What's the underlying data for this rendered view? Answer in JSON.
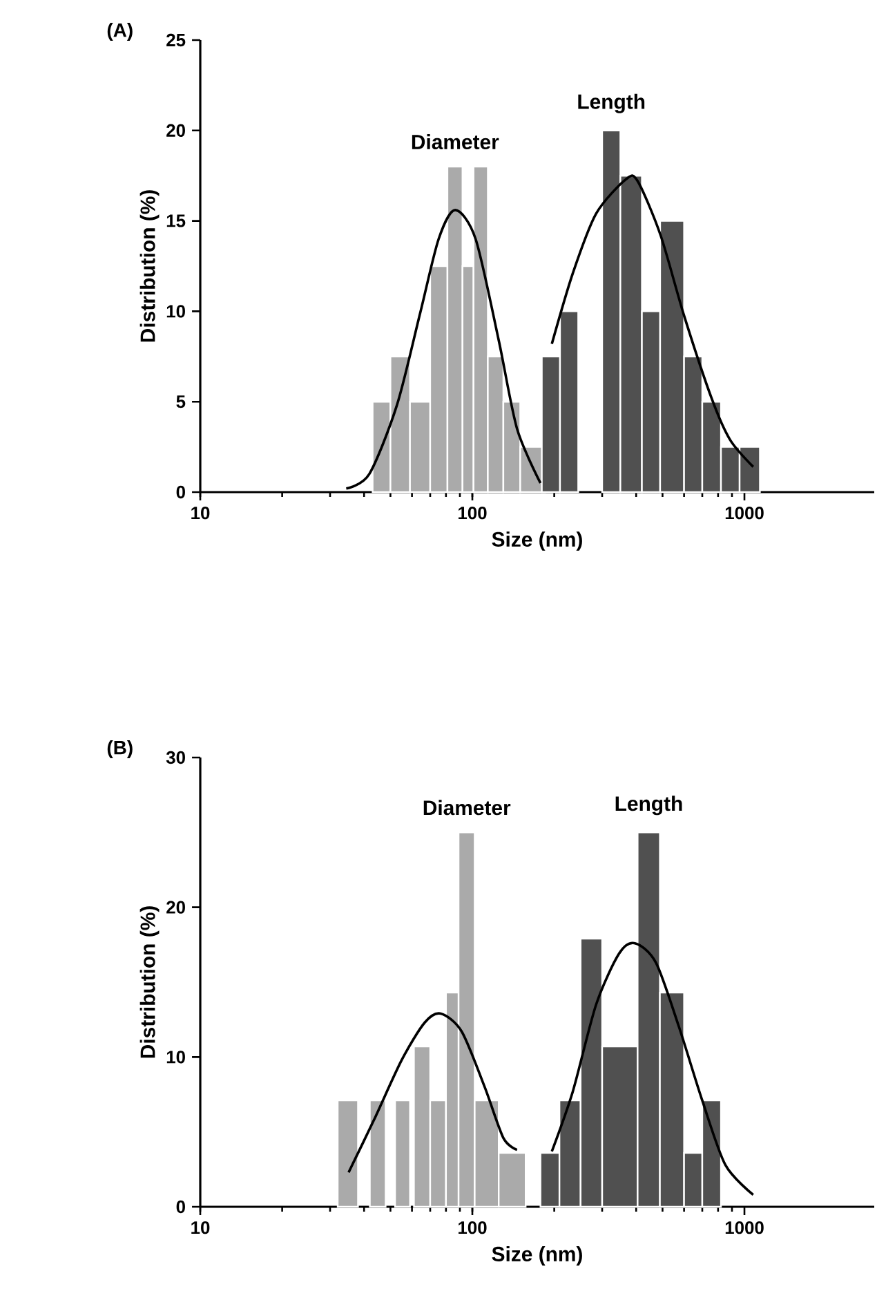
{
  "chart_data": [
    {
      "type": "histogram",
      "title": "(A)",
      "xlabel": "Size (nm)",
      "ylabel": "Distribution (%)",
      "log": "x",
      "xlim": [
        10,
        3000
      ],
      "xticks": [
        10,
        100,
        1000
      ],
      "ylim": [
        0,
        25
      ],
      "yticks": [
        0,
        5,
        10,
        15,
        20,
        25
      ],
      "series": [
        {
          "name": "Diameter",
          "color": "#aaaaaa",
          "bins": [
            43,
            50,
            59,
            70,
            81,
            92,
            101,
            114,
            130,
            150,
            185
          ],
          "values": [
            5,
            7.5,
            5,
            12.5,
            18,
            12.5,
            18,
            7.5,
            5,
            2.5
          ]
        },
        {
          "name": "Length",
          "color": "#505050",
          "bins": [
            180,
            210,
            245,
            300,
            350,
            420,
            490,
            600,
            700,
            820,
            960,
            1140
          ],
          "values": [
            7.5,
            10,
            0,
            20,
            17.5,
            10,
            15,
            7.5,
            5,
            2.5,
            2.5
          ]
        },
        {
          "type": "line",
          "color": "#000000",
          "x": [
            34.4,
            41.8,
            52.8,
            64.3,
            75.2,
            86.5,
            102.8,
            125,
            146,
            178
          ],
          "values": [
            0.2,
            1,
            4.8,
            9.9,
            14,
            15.6,
            14,
            8.4,
            3.5,
            0.5
          ]
        },
        {
          "type": "line",
          "color": "#000000",
          "x": [
            196,
            234,
            285,
            367,
            405,
            492,
            599,
            757,
            885,
            1077
          ],
          "values": [
            8.2,
            12.1,
            15.4,
            17.3,
            17.2,
            14.2,
            9.8,
            5.2,
            2.9,
            1.4
          ]
        }
      ]
    },
    {
      "type": "histogram",
      "title": "(B)",
      "xlabel": "Size (nm)",
      "ylabel": "Distribution (%)",
      "log": "x",
      "xlim": [
        10,
        3000
      ],
      "xticks": [
        10,
        100,
        1000
      ],
      "ylim": [
        0,
        30
      ],
      "yticks": [
        0,
        10,
        20,
        30
      ],
      "series": [
        {
          "name": "Diameter",
          "color": "#aaaaaa",
          "bins": [
            32,
            38,
            42,
            48,
            52,
            59,
            61,
            70,
            80,
            89,
            102,
            125,
            157
          ],
          "values": [
            7.1,
            0,
            7.1,
            0,
            7.1,
            0,
            10.7,
            7.1,
            14.3,
            25,
            7.1,
            3.6
          ]
        },
        {
          "name": "Length",
          "color": "#505050",
          "bins": [
            178,
            209,
            250,
            300,
            405,
            489,
            600,
            700,
            820
          ],
          "values": [
            3.6,
            7.1,
            17.9,
            10.7,
            25,
            14.3,
            3.6,
            7.1
          ]
        },
        {
          "type": "line",
          "color": "#000000",
          "x": [
            35.1,
            43.5,
            55,
            66.8,
            76.6,
            91.4,
            111,
            130,
            146
          ],
          "values": [
            2.3,
            5.8,
            9.8,
            12.3,
            12.9,
            11.7,
            8,
            4.6,
            3.8
          ]
        },
        {
          "type": "line",
          "color": "#000000",
          "x": [
            196,
            234,
            285,
            346,
            396,
            473,
            575,
            700,
            851,
            1077
          ],
          "values": [
            3.7,
            7.7,
            13.5,
            16.9,
            17.6,
            16.3,
            12,
            7.1,
            2.8,
            0.8
          ]
        }
      ]
    }
  ]
}
